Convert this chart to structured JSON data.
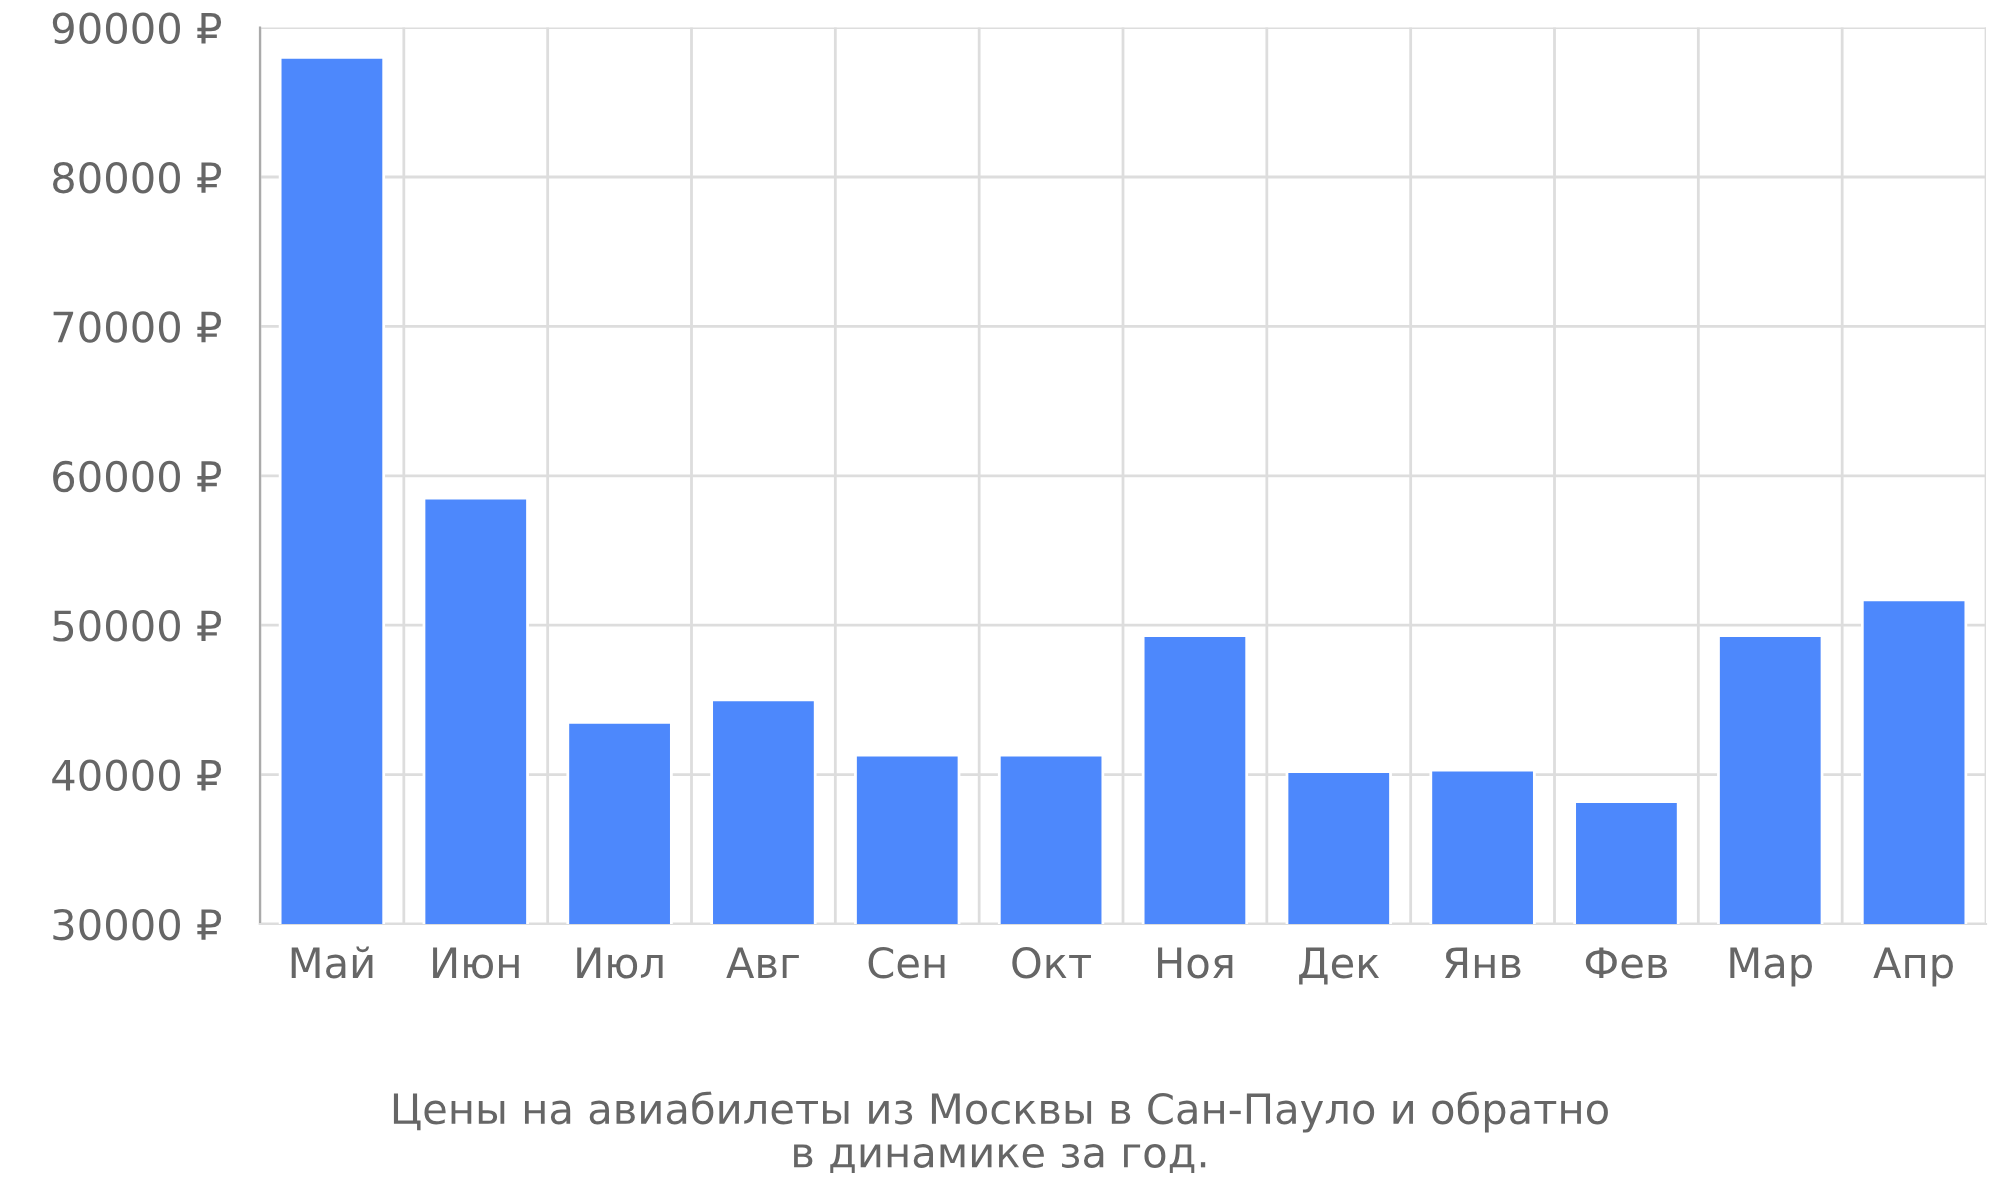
{
  "chart_data": {
    "type": "bar",
    "title": "Цены на авиабилеты из Москвы в Сан-Пауло и обратно\nв динамике за год.",
    "categories": [
      "Май",
      "Июн",
      "Июл",
      "Авг",
      "Сен",
      "Окт",
      "Ноя",
      "Дек",
      "Янв",
      "Фев",
      "Мар",
      "Апр"
    ],
    "values": [
      88000,
      58500,
      43500,
      45000,
      41300,
      41300,
      49300,
      40200,
      40300,
      38200,
      49300,
      51700
    ],
    "color": "#4d88fc",
    "ylim": [
      30000,
      90000
    ],
    "yticks": [
      {
        "value": 30000,
        "label": "30000 ₽"
      },
      {
        "value": 40000,
        "label": "40000 ₽"
      },
      {
        "value": 50000,
        "label": "50000 ₽"
      },
      {
        "value": 60000,
        "label": "60000 ₽"
      },
      {
        "value": 70000,
        "label": "70000 ₽"
      },
      {
        "value": 80000,
        "label": "80000 ₽"
      },
      {
        "value": 90000,
        "label": "90000 ₽"
      }
    ],
    "grid": true
  }
}
